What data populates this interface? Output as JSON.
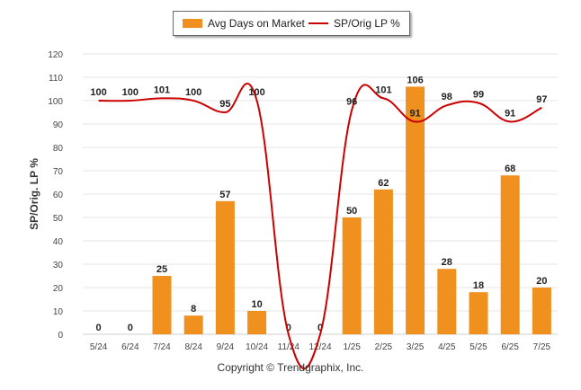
{
  "chart_data": {
    "type": "bar",
    "categories": [
      "5/24",
      "6/24",
      "7/24",
      "8/24",
      "9/24",
      "10/24",
      "11/24",
      "12/24",
      "1/25",
      "2/25",
      "3/25",
      "4/25",
      "5/25",
      "6/25",
      "7/25"
    ],
    "series": [
      {
        "name": "Avg Days on Market",
        "type": "bar",
        "color": "#f0901e",
        "values": [
          0,
          0,
          25,
          8,
          57,
          10,
          0,
          0,
          50,
          62,
          106,
          28,
          18,
          68,
          20
        ]
      },
      {
        "name": "SP/Orig LP %",
        "type": "line",
        "color": "#cc0000",
        "values": [
          100,
          100,
          101,
          100,
          95,
          100,
          0,
          0,
          96,
          101,
          91,
          98,
          99,
          91,
          97
        ]
      }
    ],
    "ylabel": "SP/Orig. LP %",
    "xlabel": "",
    "ylim": [
      0,
      120
    ],
    "yticks": [
      0,
      10,
      20,
      30,
      40,
      50,
      60,
      70,
      80,
      90,
      100,
      110,
      120
    ],
    "grid": true,
    "legend_position": "top-center"
  },
  "footer": {
    "copyright": "Copyright © Trendgraphix, Inc."
  }
}
